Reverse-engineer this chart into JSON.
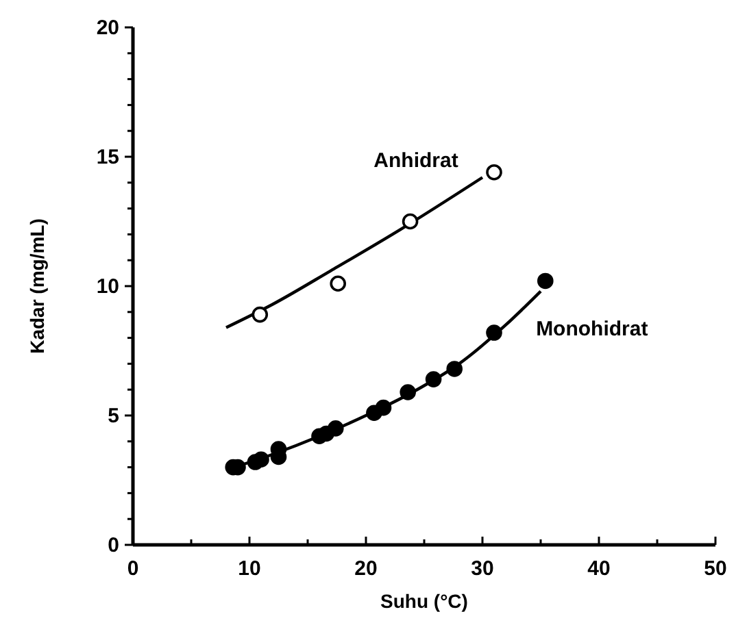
{
  "chart_data": {
    "type": "scatter",
    "xlabel": "Suhu (°C)",
    "ylabel": "Kadar (mg/mL)",
    "xlim": [
      0,
      50
    ],
    "ylim": [
      0,
      20
    ],
    "xticks": [
      0,
      {
        "value": 5,
        "label": null
      },
      10,
      {
        "value": 15,
        "label": null
      },
      20,
      {
        "value": 25,
        "label": null
      },
      30,
      {
        "value": 35,
        "label": null
      },
      40,
      {
        "value": 45,
        "label": null
      },
      50
    ],
    "yticks": [
      0,
      {
        "value": 1,
        "label": null
      },
      {
        "value": 2,
        "label": null
      },
      {
        "value": 3,
        "label": null
      },
      {
        "value": 4,
        "label": null
      },
      5,
      {
        "value": 6,
        "label": null
      },
      {
        "value": 7,
        "label": null
      },
      {
        "value": 8,
        "label": null
      },
      {
        "value": 9,
        "label": null
      },
      10,
      {
        "value": 11,
        "label": null
      },
      {
        "value": 12,
        "label": null
      },
      {
        "value": 13,
        "label": null
      },
      {
        "value": 14,
        "label": null
      },
      15,
      {
        "value": 16,
        "label": null
      },
      {
        "value": 17,
        "label": null
      },
      {
        "value": 18,
        "label": null
      },
      {
        "value": 19,
        "label": null
      },
      20
    ],
    "grid": false,
    "marker": "circle",
    "series": [
      {
        "name": "Anhidrat",
        "color": "#ffffff",
        "x": [
          10.9,
          17.6,
          23.8,
          31
        ],
        "values": [
          8.9,
          10.1,
          12.5,
          14.4
        ]
      },
      {
        "name": "Monohidrat",
        "color": "#000000",
        "x": [
          8.6,
          9,
          10.5,
          11,
          12.5,
          12.5,
          16,
          16.6,
          17.4,
          20.7,
          21.5,
          23.6,
          25.8,
          27.6,
          31,
          35.4
        ],
        "values": [
          3.0,
          3.0,
          3.2,
          3.3,
          3.7,
          3.4,
          4.2,
          4.3,
          4.5,
          5.1,
          5.3,
          5.9,
          6.4,
          6.8,
          8.2,
          10.2
        ]
      },
      {
        "type": "line",
        "color": "#000000",
        "marker": "none",
        "x": [
          8,
          12,
          17,
          23,
          30
        ],
        "values": [
          8.4,
          9.3,
          10.6,
          12.2,
          14.2
        ]
      },
      {
        "type": "line",
        "color": "#000000",
        "marker": "none",
        "x": [
          8,
          12,
          16,
          20,
          24,
          28,
          32,
          35
        ],
        "values": [
          2.9,
          3.5,
          4.2,
          5.0,
          5.9,
          7.0,
          8.5,
          9.8
        ]
      }
    ]
  }
}
